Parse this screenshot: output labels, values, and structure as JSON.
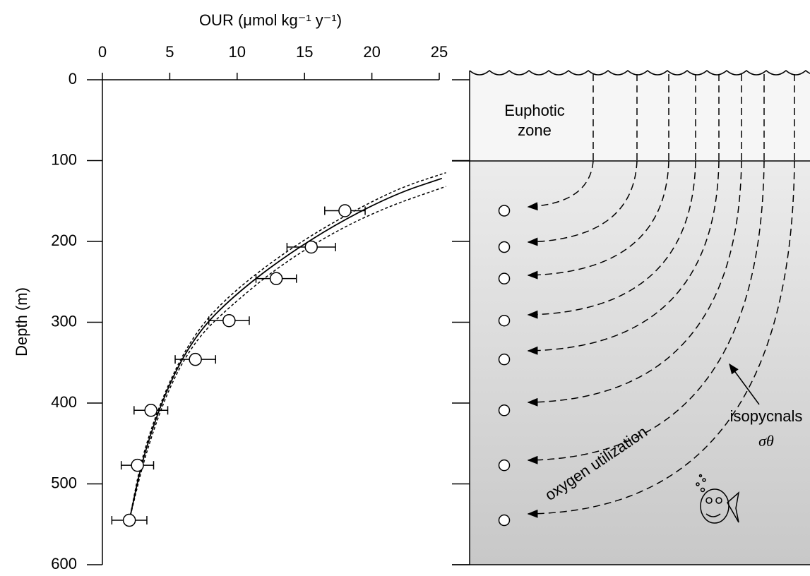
{
  "chart_data": {
    "type": "scatter",
    "title": "OUR (μmol kg⁻¹ y⁻¹)",
    "y_label": "Depth (m)",
    "xlim": [
      0,
      25
    ],
    "xticks": [
      0,
      5,
      10,
      15,
      20,
      25
    ],
    "ylim": [
      0,
      600
    ],
    "yticks": [
      0,
      100,
      200,
      300,
      400,
      500,
      600
    ],
    "y_inverted": true,
    "series": [
      {
        "name": "OUR",
        "color": "#000000",
        "x": [
          18,
          15.5,
          12.9,
          9.4,
          6.9,
          3.6,
          2.6,
          2
        ],
        "y": [
          162,
          207,
          246,
          298,
          346,
          409,
          477,
          545
        ],
        "xerr": [
          1.5,
          1.8,
          1.5,
          1.5,
          1.5,
          1.25,
          1.2,
          1.3
        ]
      },
      {
        "name": "fit",
        "color": "#000000",
        "style": "solid",
        "x": [
          2,
          3.1,
          5,
          7.1,
          9.7,
          13.4,
          17.6,
          21.8,
          25.2
        ],
        "y": [
          545,
          460,
          373,
          312,
          268,
          220,
          176,
          141,
          122
        ]
      },
      {
        "name": "upper",
        "color": "#000000",
        "style": "dashed",
        "x": [
          2,
          3,
          5,
          7.2,
          10,
          14,
          18,
          22,
          25.5
        ],
        "y": [
          545,
          460,
          370,
          305,
          258,
          208,
          168,
          134,
          115
        ]
      },
      {
        "name": "lower",
        "color": "#000000",
        "style": "dashed",
        "x": [
          2,
          3.2,
          5,
          7,
          9.5,
          13,
          17,
          21,
          25.5
        ],
        "y": [
          545,
          462,
          378,
          320,
          280,
          232,
          190,
          158,
          132
        ]
      }
    ]
  },
  "diagram": {
    "euphotic_zone": [
      "Euphotic",
      "zone"
    ],
    "isopycnals": "isopycnals",
    "sigma": "σθ",
    "oxygen_utilization": "oxygen utilization"
  }
}
